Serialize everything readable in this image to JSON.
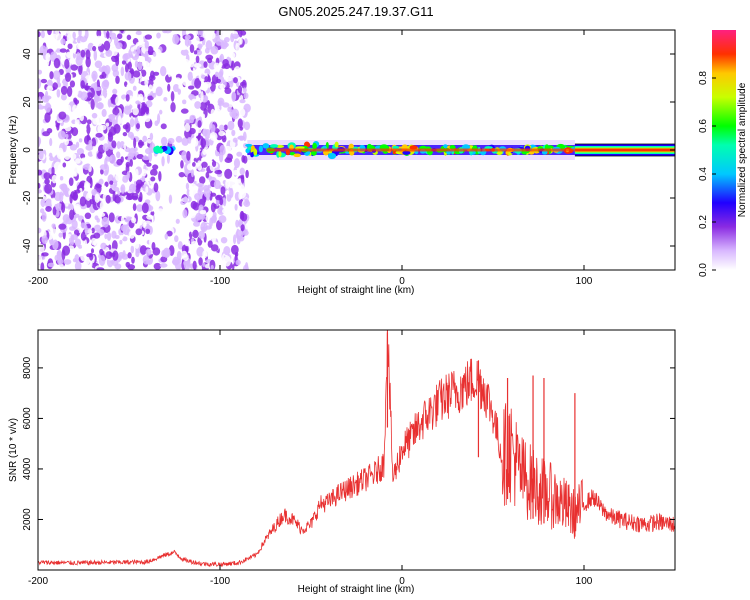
{
  "chart_data": [
    {
      "type": "heatmap",
      "title": "GN05.2025.247.19.37.G11",
      "xlabel": "Height of straight line (km)",
      "ylabel": "Frequency (Hz)",
      "xlim": [
        -200,
        150
      ],
      "ylim": [
        -50,
        50
      ],
      "xticks": [
        -200,
        -100,
        0,
        100
      ],
      "xtick_labels": [
        "-200",
        "-100",
        "0",
        "100"
      ],
      "yticks": [
        -40,
        -20,
        0,
        20,
        40
      ],
      "ytick_labels": [
        "-40",
        "-20",
        "0",
        "20",
        "40"
      ],
      "colorbar": {
        "label": "Normalized spectral amplitude",
        "range": [
          0,
          1
        ],
        "ticks": [
          0.0,
          0.2,
          0.4,
          0.6,
          0.8
        ],
        "tick_labels": [
          "0.0",
          "0.2",
          "0.4",
          "0.6",
          "0.8"
        ]
      },
      "description_bands": [
        {
          "x_range": [
            -200,
            -137
          ],
          "content": "scattered noise",
          "amplitude": 0.1
        },
        {
          "x_range": [
            -137,
            -120
          ],
          "content": "sparse noise, signal near 0 Hz",
          "amplitude": 0.3
        },
        {
          "x_range": [
            -120,
            -85
          ],
          "content": "scattered noise",
          "amplitude": 0.1
        },
        {
          "x_range": [
            -85,
            95
          ],
          "content": "signal band near 0 Hz with spread",
          "amplitude": 0.7
        },
        {
          "x_range": [
            95,
            150
          ],
          "content": "strong narrow signal at 0 Hz",
          "amplitude": 1.0
        }
      ]
    },
    {
      "type": "line",
      "title": "",
      "xlabel": "Height of straight line (km)",
      "ylabel": "SNR (10 * v/v)",
      "xlim": [
        -200,
        150
      ],
      "ylim": [
        0,
        9500
      ],
      "xticks": [
        -200,
        -100,
        0,
        100
      ],
      "xtick_labels": [
        "-200",
        "-100",
        "0",
        "100"
      ],
      "yticks": [
        2000,
        4000,
        6000,
        8000
      ],
      "ytick_labels": [
        "2000",
        "4000",
        "6000",
        "8000"
      ],
      "series": [
        {
          "name": "SNR",
          "color": "#e83030",
          "x": [
            -200,
            -180,
            -160,
            -140,
            -130,
            -125,
            -120,
            -110,
            -100,
            -90,
            -80,
            -75,
            -70,
            -65,
            -60,
            -55,
            -50,
            -45,
            -40,
            -35,
            -30,
            -25,
            -20,
            -15,
            -10,
            -8,
            -5,
            0,
            5,
            10,
            15,
            20,
            25,
            30,
            35,
            40,
            45,
            50,
            55,
            60,
            65,
            70,
            75,
            80,
            85,
            90,
            95,
            100,
            105,
            110,
            115,
            120,
            125,
            130,
            135,
            140,
            145,
            150
          ],
          "values": [
            300,
            280,
            300,
            320,
            600,
            700,
            400,
            250,
            220,
            280,
            600,
            1200,
            1700,
            2200,
            2000,
            1600,
            1800,
            2600,
            2700,
            3000,
            3200,
            3400,
            3600,
            3800,
            4200,
            9400,
            3600,
            4800,
            5200,
            5800,
            6200,
            6600,
            6900,
            7100,
            7300,
            7600,
            7200,
            6200,
            4500,
            4800,
            3800,
            3500,
            3200,
            3000,
            2800,
            2500,
            2200,
            2600,
            2900,
            2400,
            2100,
            2000,
            1900,
            1850,
            1800,
            1900,
            1850,
            1800
          ],
          "spikes": [
            {
              "x": -8,
              "value": 9400
            },
            {
              "x": 42,
              "value": 8300
            },
            {
              "x": 72,
              "value": 7700
            },
            {
              "x": 78,
              "value": 7600
            },
            {
              "x": 95,
              "value": 7000
            },
            {
              "x": 58,
              "value": 7600
            }
          ]
        }
      ]
    }
  ]
}
